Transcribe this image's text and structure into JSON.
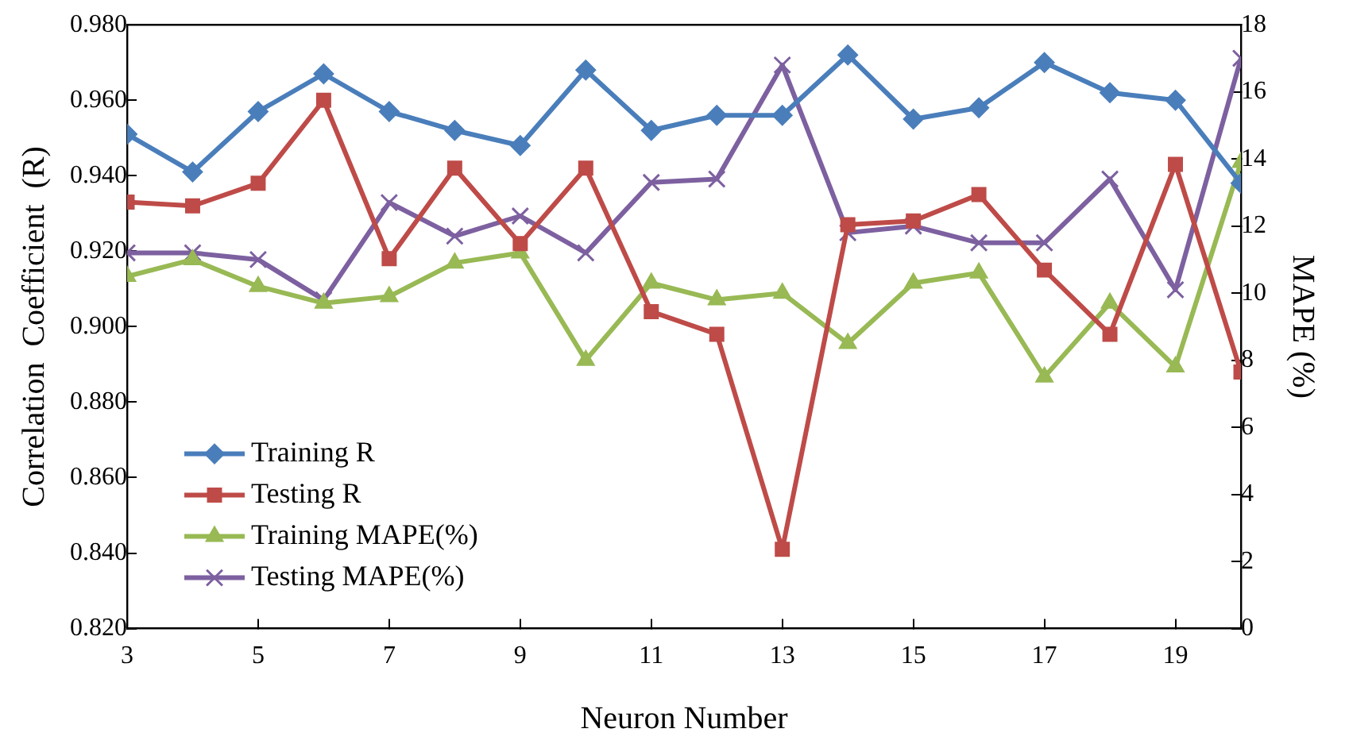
{
  "chart_data": {
    "type": "line",
    "xlabel": "Neuron Number",
    "ylabel": "Correlation  Coefficient  (R)",
    "y2label": "MAPE (%)",
    "x": [
      3,
      4,
      5,
      6,
      7,
      8,
      9,
      10,
      11,
      12,
      13,
      14,
      15,
      16,
      17,
      18,
      19,
      20
    ],
    "xlim": [
      3,
      20
    ],
    "xticks": [
      3,
      5,
      7,
      9,
      11,
      13,
      15,
      17,
      19
    ],
    "ylim": [
      0.82,
      0.98
    ],
    "yticks": [
      {
        "value": 0.82,
        "label": "0.820"
      },
      {
        "value": 0.84,
        "label": "0.840"
      },
      {
        "value": 0.86,
        "label": "0.860"
      },
      {
        "value": 0.88,
        "label": "0.880"
      },
      {
        "value": 0.9,
        "label": "0.900"
      },
      {
        "value": 0.92,
        "label": "0.920"
      },
      {
        "value": 0.94,
        "label": "0.940"
      },
      {
        "value": 0.96,
        "label": "0.960"
      },
      {
        "value": 0.98,
        "label": "0.980"
      }
    ],
    "y2lim": [
      0,
      18
    ],
    "y2ticks": [
      0,
      2,
      4,
      6,
      8,
      10,
      12,
      14,
      16,
      18
    ],
    "grid": false,
    "legend": "bottom left",
    "line_style": "solid",
    "series": [
      {
        "name": "Training R",
        "color": "#4a7ebb",
        "marker": "diamond",
        "values": [
          0.951,
          0.941,
          0.957,
          0.967,
          0.957,
          0.952,
          0.948,
          0.968,
          0.952,
          0.956,
          0.956,
          0.972,
          0.955,
          0.958,
          0.97,
          0.962,
          0.96,
          0.938
        ]
      },
      {
        "name": "Testing R",
        "color": "#be4b48",
        "marker": "square",
        "values": [
          0.933,
          0.932,
          0.938,
          0.96,
          0.918,
          0.942,
          0.922,
          0.942,
          0.904,
          0.898,
          0.841,
          0.927,
          0.928,
          0.935,
          0.915,
          0.898,
          0.943,
          0.888
        ]
      },
      {
        "name": "Training MAPE(%)",
        "color": "#98b954",
        "marker": "triangle",
        "axis": "y2",
        "values": [
          10.5,
          11.0,
          10.2,
          9.7,
          9.9,
          10.9,
          11.2,
          8.0,
          10.3,
          9.8,
          10.0,
          8.5,
          10.3,
          10.6,
          7.5,
          9.7,
          7.8,
          13.9
        ]
      },
      {
        "name": "Testing MAPE(%)",
        "color": "#7d60a0",
        "marker": "cross",
        "axis": "y2",
        "values": [
          11.2,
          11.2,
          11.0,
          9.8,
          12.7,
          11.7,
          12.3,
          11.2,
          13.3,
          13.4,
          16.8,
          11.8,
          12.0,
          11.5,
          11.5,
          13.4,
          10.1,
          17.0
        ]
      }
    ]
  }
}
